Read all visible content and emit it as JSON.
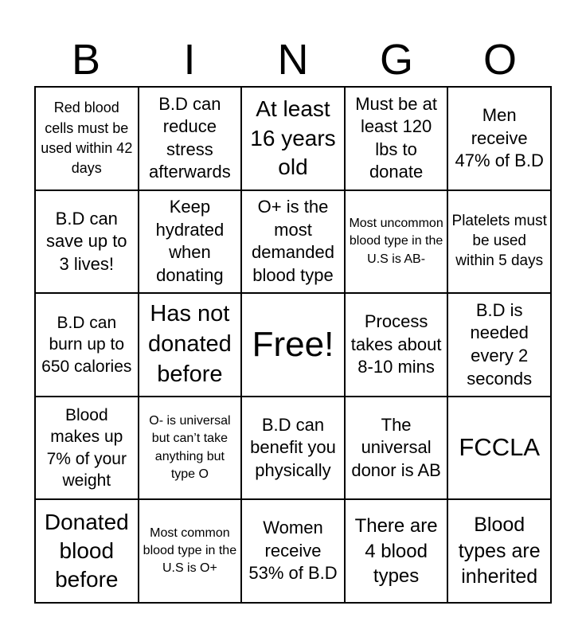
{
  "header": [
    "B",
    "I",
    "N",
    "G",
    "O"
  ],
  "cells": [
    "Red blood cells must be used within 42 days",
    "B.D can reduce stress afterwards",
    "At least 16 years old",
    "Must be at least 120 lbs to donate",
    "Men receive 47% of B.D",
    "B.D can save up to 3 lives!",
    "Keep hydrated when donating",
    "O+ is the most demanded blood type",
    "Most uncommon blood type in the U.S is AB-",
    "Platelets must be used within 5 days",
    "B.D can burn up to 650 calories",
    "Has not donated before",
    "Free!",
    "Process takes about 8-10 mins",
    "B.D is needed every 2 seconds",
    "Blood makes up 7% of your weight",
    "O- is universal but can’t take anything but type O",
    "B.D can benefit you physically",
    "The universal donor is AB",
    "FCCLA",
    "Donated blood before",
    "Most common blood type in the U.S is O+",
    "Women receive 53% of B.D",
    "There are 4 blood types",
    "Blood types are inherited"
  ]
}
